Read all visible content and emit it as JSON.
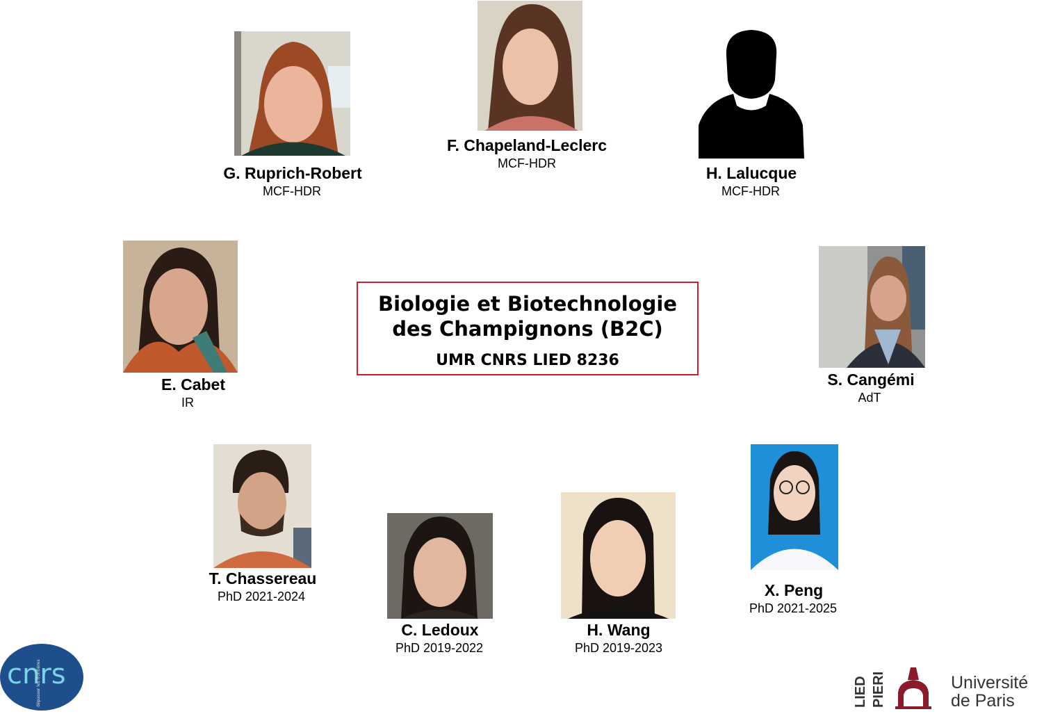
{
  "title": {
    "line1": "Biologie et Biotechnologie",
    "line2": "des Champignons (B2C)",
    "subtitle": "UMR CNRS LIED 8236",
    "border_color": "#cc1f2a"
  },
  "members": [
    {
      "name": "G. Ruprich-Robert",
      "role": "MCF-HDR"
    },
    {
      "name": "F. Chapeland-Leclerc",
      "role": "MCF-HDR"
    },
    {
      "name": "H. Lalucque",
      "role": "MCF-HDR"
    },
    {
      "name": "E. Cabet",
      "role": "IR"
    },
    {
      "name": "S. Cangémi",
      "role": "AdT"
    },
    {
      "name": "T. Chassereau",
      "role": "PhD 2021-2024"
    },
    {
      "name": "C. Ledoux",
      "role": "PhD 2019-2022"
    },
    {
      "name": "H. Wang",
      "role": "PhD 2019-2023"
    },
    {
      "name": "X. Peng",
      "role": "PhD 2021-2025"
    }
  ],
  "logos": {
    "cnrs": {
      "text": "cnrs",
      "tagline": "dépasser les frontières",
      "color": "#1f4e8c"
    },
    "lied": {
      "text1": "LIED",
      "text2": "PIERI"
    },
    "university": {
      "line1": "Université",
      "line2": "de Paris",
      "color": "#8b1a2b"
    }
  }
}
